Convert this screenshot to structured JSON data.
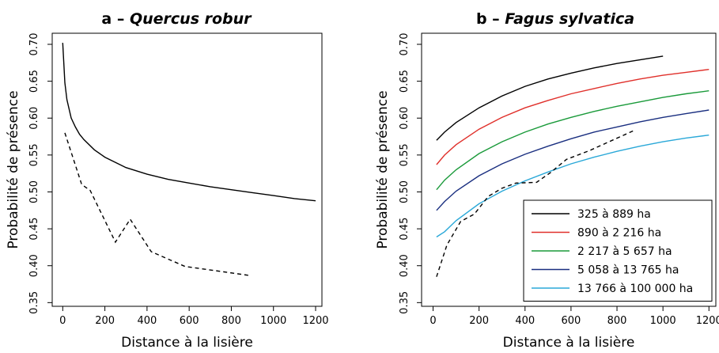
{
  "chart_data": [
    {
      "type": "line",
      "title_prefix": "a – ",
      "title_species": "Quercus robur",
      "xlabel": "Distance à la lisière",
      "ylabel": "Probabilité de présence",
      "xlim": [
        -50,
        1230
      ],
      "ylim": [
        0.345,
        0.715
      ],
      "xticks": [
        "0",
        "200",
        "400",
        "600",
        "800",
        "1000",
        "1200"
      ],
      "yticks": [
        "0.35",
        "0.40",
        "0.45",
        "0.50",
        "0.55",
        "0.60",
        "0.65",
        "0.70"
      ],
      "grid": false,
      "legend": null,
      "series": [
        {
          "style": "solid",
          "color": "#000000",
          "x": [
            0,
            10,
            20,
            40,
            60,
            80,
            100,
            150,
            200,
            300,
            400,
            500,
            600,
            700,
            800,
            900,
            1000,
            1100,
            1200
          ],
          "y": [
            0.702,
            0.648,
            0.625,
            0.6,
            0.588,
            0.578,
            0.571,
            0.557,
            0.547,
            0.533,
            0.524,
            0.517,
            0.512,
            0.507,
            0.503,
            0.499,
            0.495,
            0.491,
            0.488
          ]
        },
        {
          "style": "dashed",
          "color": "#000000",
          "x": [
            10,
            90,
            130,
            250,
            320,
            420,
            580,
            880
          ],
          "y": [
            0.58,
            0.51,
            0.502,
            0.432,
            0.463,
            0.419,
            0.399,
            0.387
          ]
        }
      ]
    },
    {
      "type": "line",
      "title_prefix": "b – ",
      "title_species": "Fagus sylvatica",
      "xlabel": "Distance à la lisière",
      "ylabel": "Probabilité de présence",
      "xlim": [
        -50,
        1230
      ],
      "ylim": [
        0.345,
        0.715
      ],
      "xticks": [
        "0",
        "200",
        "400",
        "600",
        "800",
        "1000",
        "1200"
      ],
      "yticks": [
        "0.35",
        "0.40",
        "0.45",
        "0.50",
        "0.55",
        "0.60",
        "0.65",
        "0.70"
      ],
      "grid": false,
      "legend": "bottom-right",
      "series": [
        {
          "name": "325 à 889 ha",
          "style": "solid",
          "color": "#000000",
          "x": [
            15,
            50,
            100,
            200,
            300,
            400,
            500,
            600,
            700,
            800,
            900,
            1000
          ],
          "y": [
            0.57,
            0.581,
            0.594,
            0.614,
            0.63,
            0.643,
            0.653,
            0.661,
            0.668,
            0.674,
            0.679,
            0.684
          ]
        },
        {
          "name": "890 à 2 216 ha",
          "style": "solid",
          "color": "#e0302b",
          "x": [
            15,
            50,
            100,
            200,
            300,
            400,
            500,
            600,
            700,
            800,
            900,
            1000,
            1100,
            1200
          ],
          "y": [
            0.537,
            0.55,
            0.564,
            0.585,
            0.601,
            0.614,
            0.624,
            0.633,
            0.64,
            0.647,
            0.653,
            0.658,
            0.662,
            0.666
          ]
        },
        {
          "name": "2 217 à 5 657 ha",
          "style": "solid",
          "color": "#1a9a3a",
          "x": [
            15,
            50,
            100,
            200,
            300,
            400,
            500,
            600,
            700,
            800,
            900,
            1000,
            1100,
            1200
          ],
          "y": [
            0.503,
            0.516,
            0.53,
            0.552,
            0.568,
            0.581,
            0.592,
            0.601,
            0.609,
            0.616,
            0.622,
            0.628,
            0.633,
            0.637
          ]
        },
        {
          "name": "5 058 à 13 765 ha",
          "style": "solid",
          "color": "#1a2f80",
          "x": [
            15,
            50,
            100,
            200,
            300,
            400,
            500,
            600,
            700,
            800,
            900,
            1000,
            1100,
            1200
          ],
          "y": [
            0.475,
            0.487,
            0.501,
            0.522,
            0.538,
            0.551,
            0.562,
            0.572,
            0.581,
            0.588,
            0.595,
            0.601,
            0.606,
            0.611
          ]
        },
        {
          "name": "13 766 à 100 000 ha",
          "style": "solid",
          "color": "#2aa8d8",
          "x": [
            15,
            50,
            100,
            200,
            300,
            400,
            500,
            600,
            700,
            800,
            900,
            1000,
            1100,
            1200
          ],
          "y": [
            0.439,
            0.446,
            0.461,
            0.484,
            0.501,
            0.515,
            0.527,
            0.538,
            0.547,
            0.555,
            0.562,
            0.568,
            0.573,
            0.577
          ]
        },
        {
          "style": "dashed",
          "color": "#000000",
          "x": [
            15,
            60,
            120,
            180,
            240,
            300,
            360,
            450,
            510,
            580,
            680,
            780,
            880
          ],
          "y": [
            0.385,
            0.428,
            0.46,
            0.47,
            0.494,
            0.505,
            0.512,
            0.513,
            0.526,
            0.544,
            0.556,
            0.57,
            0.584
          ]
        }
      ]
    }
  ]
}
